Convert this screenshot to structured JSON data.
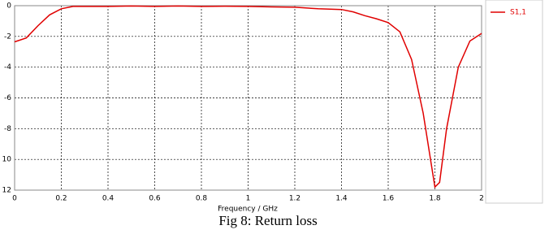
{
  "chart_data": {
    "type": "line",
    "x_label": "Frequency / GHz",
    "caption": "Fig 8: Return loss",
    "x": [
      0,
      0.05,
      0.1,
      0.15,
      0.2,
      0.25,
      0.3,
      0.4,
      0.5,
      0.6,
      0.7,
      0.8,
      0.9,
      1.0,
      1.1,
      1.2,
      1.3,
      1.4,
      1.45,
      1.5,
      1.55,
      1.6,
      1.65,
      1.7,
      1.75,
      1.8,
      1.82,
      1.85,
      1.9,
      1.95,
      2.0
    ],
    "series": [
      {
        "name": "S1,1",
        "color": "#e00000",
        "values": [
          -2.35,
          -2.1,
          -1.3,
          -0.6,
          -0.2,
          -0.05,
          -0.05,
          -0.05,
          -0.02,
          -0.05,
          -0.02,
          -0.05,
          -0.03,
          -0.05,
          -0.08,
          -0.1,
          -0.2,
          -0.25,
          -0.4,
          -0.65,
          -0.85,
          -1.1,
          -1.7,
          -3.5,
          -7,
          -11.8,
          -11.5,
          -8,
          -4,
          -2.3,
          -1.8
        ]
      }
    ],
    "xlim": [
      0,
      2
    ],
    "ylim": [
      -12,
      0
    ],
    "xticks": [
      0,
      0.2,
      0.4,
      0.6,
      0.8,
      1,
      1.2,
      1.4,
      1.6,
      1.8,
      2
    ],
    "yticks": [
      0,
      -2,
      -4,
      -6,
      -8,
      {
        "value": -10,
        "label": "10"
      },
      {
        "value": -12,
        "label": "12"
      }
    ],
    "grid": true,
    "legend": "right"
  }
}
